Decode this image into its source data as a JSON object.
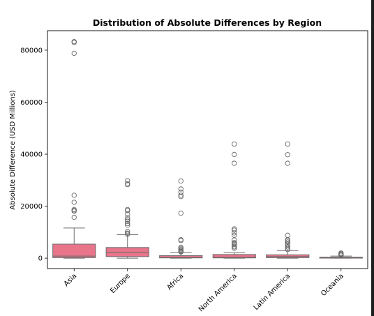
{
  "chart_data": {
    "type": "boxplot",
    "title": "Distribution of Absolute Differences by Region",
    "xlabel": "",
    "ylabel": "Absolute Difference (USD Millions)",
    "ylim": [
      -4000,
      87500
    ],
    "yticks": [
      0,
      20000,
      40000,
      60000,
      80000
    ],
    "yticklabels": [
      "0",
      "20000",
      "40000",
      "60000",
      "80000"
    ],
    "box_color": "#e8758a",
    "line_color": "#6b6b6b",
    "grid": false,
    "categories": [
      "Asia",
      "Europe",
      "Africa",
      "North America",
      "Latin America",
      "Oceania"
    ],
    "boxes": [
      {
        "category": "Asia",
        "whisker_low": 0,
        "q1": 200,
        "median": 800,
        "q3": 5400,
        "whisker_high": 11600,
        "outliers": [
          83300,
          83000,
          78800,
          24200,
          21500,
          18700,
          18300,
          18100,
          15700
        ]
      },
      {
        "category": "Europe",
        "whisker_low": 0,
        "q1": 600,
        "median": 2300,
        "q3": 4100,
        "whisker_high": 9000,
        "outliers": [
          29800,
          28600,
          28300,
          18700,
          18300,
          16900,
          15500,
          14800,
          14200,
          13300,
          12700,
          10300,
          9600,
          9200
        ]
      },
      {
        "category": "Africa",
        "whisker_low": 0,
        "q1": 100,
        "median": 300,
        "q3": 1000,
        "whisker_high": 2200,
        "outliers": [
          29700,
          26600,
          25400,
          24200,
          23700,
          17300,
          7100,
          6800,
          4200,
          3700,
          3300,
          2900,
          2600,
          2400
        ]
      },
      {
        "category": "North America",
        "whisker_low": 0,
        "q1": 100,
        "median": 300,
        "q3": 1400,
        "whisker_high": 2100,
        "outliers": [
          43900,
          39900,
          36500,
          11300,
          10800,
          9700,
          8800,
          7000,
          6000,
          5600,
          5300,
          4700,
          4300,
          3800
        ]
      },
      {
        "category": "Latin America",
        "whisker_low": 0,
        "q1": 200,
        "median": 600,
        "q3": 1300,
        "whisker_high": 2900,
        "outliers": [
          43900,
          39800,
          36500,
          8800,
          7100,
          6700,
          6200,
          5500,
          4900,
          4300,
          3700,
          3300
        ]
      },
      {
        "category": "Oceania",
        "whisker_low": 0,
        "q1": 20,
        "median": 100,
        "q3": 400,
        "whisker_high": 800,
        "outliers": [
          2000,
          1700,
          1400,
          1100
        ]
      }
    ]
  }
}
